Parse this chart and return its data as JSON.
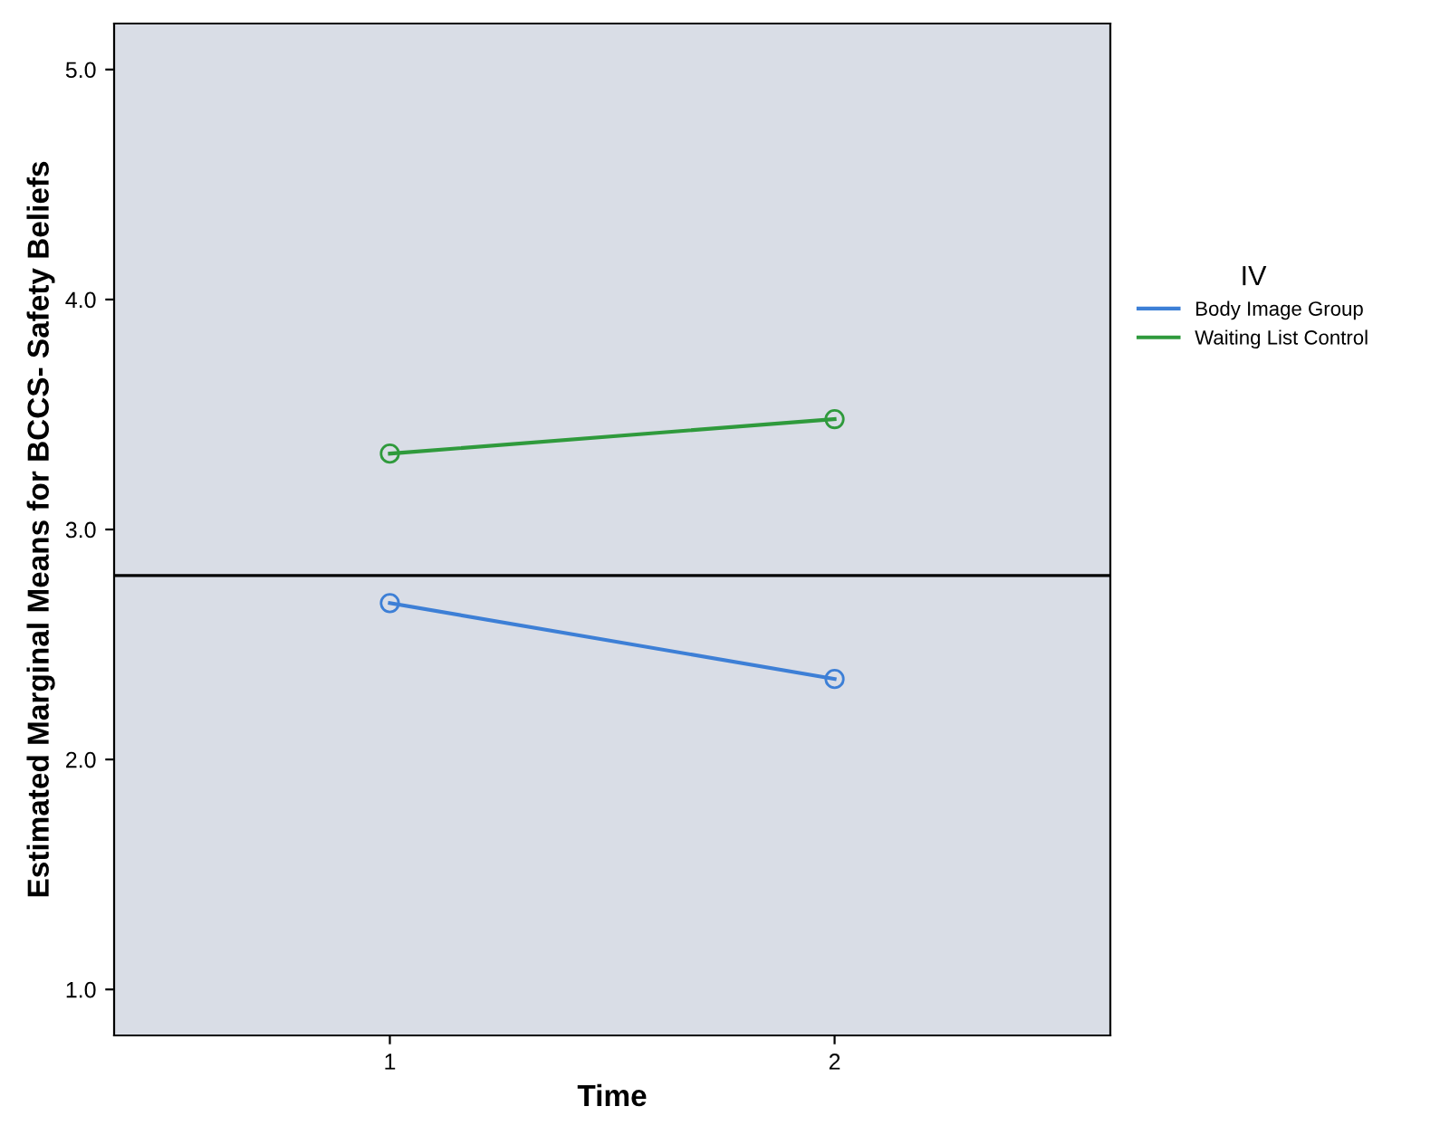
{
  "chart_data": {
    "type": "line",
    "xlabel": "Time",
    "ylabel": "Estimated Marginal Means for BCCS- Safety Beliefs",
    "legend_title": "IV",
    "categories": [
      "1",
      "2"
    ],
    "series": [
      {
        "name": "Body Image Group",
        "color": "#3d7fd6",
        "values": [
          2.68,
          2.35
        ]
      },
      {
        "name": "Waiting List Control",
        "color": "#2f9a3c",
        "values": [
          3.33,
          3.48
        ]
      }
    ],
    "ylim": [
      0.8,
      5.2
    ],
    "yticks": [
      {
        "value": 1.0,
        "label": "1.0"
      },
      {
        "value": 2.0,
        "label": "2.0"
      },
      {
        "value": 3.0,
        "label": "3.0"
      },
      {
        "value": 4.0,
        "label": "4.0"
      },
      {
        "value": 5.0,
        "label": "5.0"
      }
    ],
    "ref_lines": [
      {
        "axis": "y",
        "value": 2.8,
        "color": "#000000"
      }
    ],
    "marker": "circle",
    "line_style": "solid",
    "grid": false,
    "legend": "right"
  }
}
